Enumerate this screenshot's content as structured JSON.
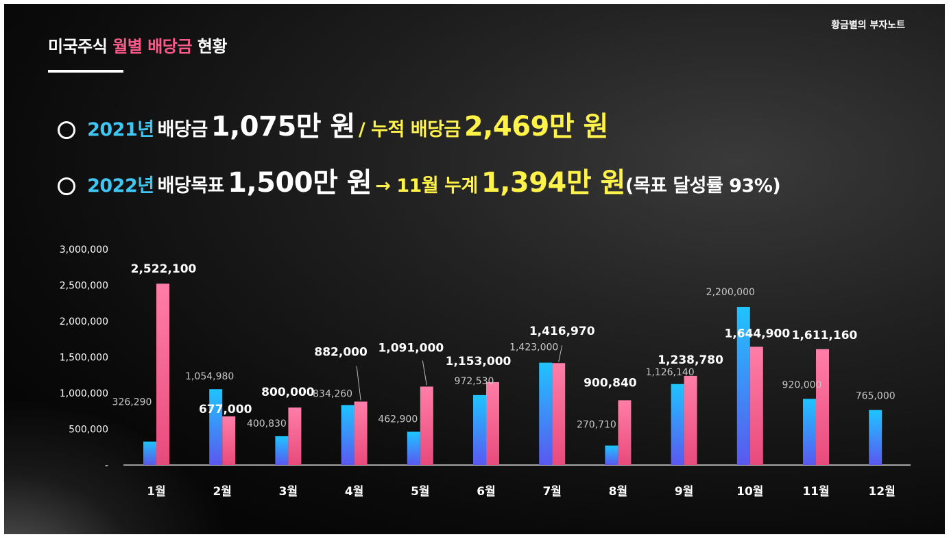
{
  "header": {
    "title_part1": "미국주식",
    "title_part2": "월별 배당금",
    "title_part3": "현황",
    "credit": "황금별의 부자노트"
  },
  "summary": {
    "line1": {
      "year": "2021년",
      "label": "배당금",
      "amount": "1,075만 원",
      "sep": "/ 누적 배당금",
      "cum_amount": "2,469만 원"
    },
    "line2": {
      "year": "2022년",
      "label": "배당목표",
      "amount": "1,500만 원",
      "arrow_text": "→ 11월 누계",
      "cum_amount": "1,394만 원",
      "rate": "(목표 달성률 93%)"
    }
  },
  "colors": {
    "blue_bar": "#1fc4ff",
    "pink_bar": "#ff6e9c",
    "highlight_blue": "#3fc6f2",
    "highlight_yellow": "#fff34a",
    "title_pink": "#ff5a8c"
  },
  "chart_data": {
    "type": "bar",
    "categories": [
      "1월",
      "2월",
      "3월",
      "4월",
      "5월",
      "6월",
      "7월",
      "8월",
      "9월",
      "10월",
      "11월",
      "12월"
    ],
    "series": [
      {
        "values": [
          326290,
          1054980,
          400830,
          834260,
          462900,
          972530,
          1423000,
          270710,
          1126140,
          2200000,
          920000,
          765000
        ],
        "labels": [
          "326,290",
          "1,054,980",
          "400,830",
          "834,260",
          "462,900",
          "972,530",
          "1,423,000",
          "270,710",
          "1,126,140",
          "2,200,000",
          "920,000",
          "765,000"
        ]
      },
      {
        "values": [
          2522100,
          677000,
          800000,
          882000,
          1091000,
          1153000,
          1416970,
          900840,
          1238780,
          1644900,
          1611160,
          null
        ],
        "labels": [
          "2,522,100",
          "677,000",
          "800,000",
          "882,000",
          "1,091,000",
          "1,153,000",
          "1,416,970",
          "900,840",
          "1,238,780",
          "1,644,900",
          "1,611,160",
          ""
        ]
      }
    ],
    "ylim": [
      0,
      3000000
    ],
    "yticks": [
      0,
      500000,
      1000000,
      1500000,
      2000000,
      2500000,
      3000000
    ],
    "ytick_labels": [
      "-",
      "500,000",
      "1,000,000",
      "1,500,000",
      "2,000,000",
      "2,500,000",
      "3,000,000"
    ],
    "grid": false,
    "legend": "none"
  }
}
